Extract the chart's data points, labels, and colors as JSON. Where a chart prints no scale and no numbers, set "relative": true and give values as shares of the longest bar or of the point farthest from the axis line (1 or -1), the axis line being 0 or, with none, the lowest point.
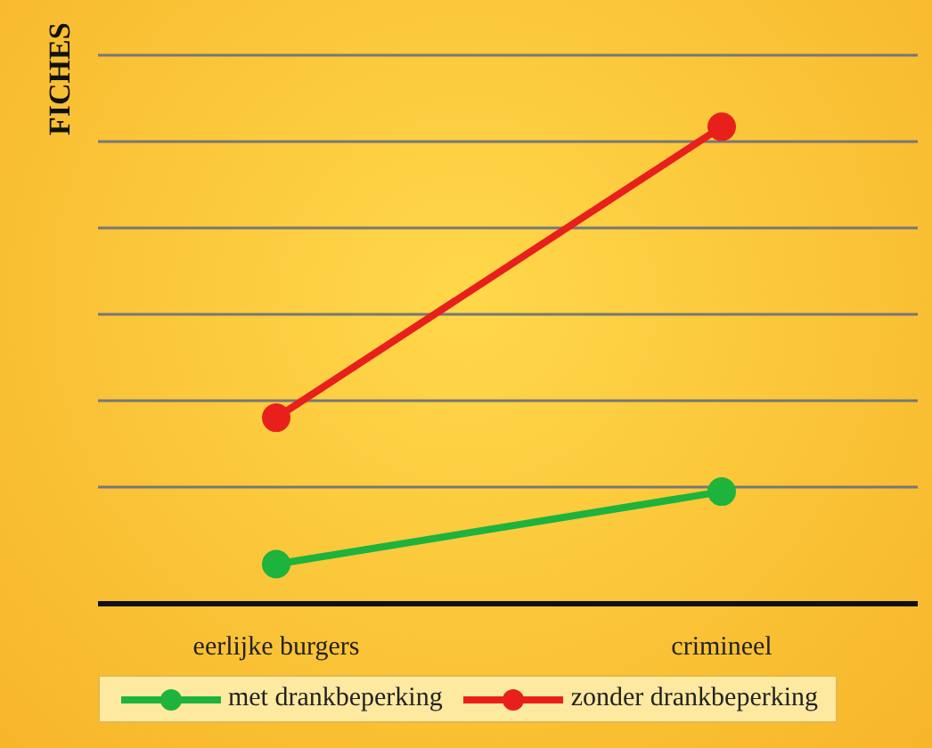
{
  "chart_data": {
    "type": "line",
    "ylabel": "FICHES",
    "relative": true,
    "categories": [
      "eerlijke burgers",
      "crimineel"
    ],
    "series": [
      {
        "name": "met drankbeperking",
        "color": "#1db33c",
        "values": [
          0.083,
          0.235
        ]
      },
      {
        "name": "zonder drankbeperking",
        "color": "#e8201c",
        "values": [
          0.39,
          1
        ]
      }
    ],
    "grid": "y",
    "legend": "bottom",
    "marker": "circle",
    "line_style": "solid"
  }
}
